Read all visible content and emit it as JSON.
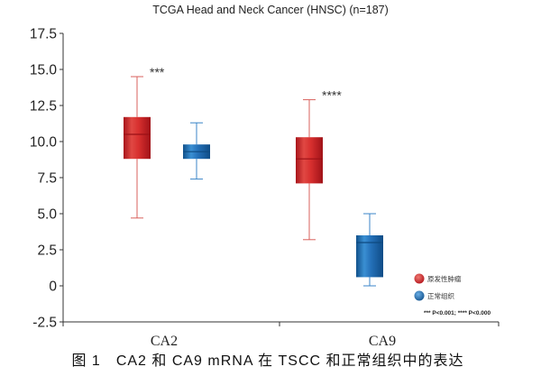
{
  "caption": "图 1　CA2 和 CA9 mRNA 在 TSCC 和正常组织中的表达",
  "chart_data": {
    "type": "box",
    "title": "TCGA Head and Neck Cancer (HNSC) (n=187)",
    "categories": [
      "CA2",
      "CA9"
    ],
    "ylim": [
      -2.5,
      17.5
    ],
    "yticks": [
      17.5,
      15,
      12.5,
      10,
      7.5,
      5,
      2.5,
      0,
      -2.5
    ],
    "ytick_labels": [
      "17.5",
      "15.0",
      "12.5",
      "10.0",
      "7.5",
      "5.0",
      "2.5",
      "0",
      "-2.5"
    ],
    "series": [
      {
        "name": "原发性肿瘤",
        "color": "#d42a2c",
        "boxes": [
          {
            "min": 4.7,
            "q1": 8.8,
            "median": 10.5,
            "q3": 11.7,
            "max": 14.5
          },
          {
            "min": 3.2,
            "q1": 7.1,
            "median": 8.8,
            "q3": 10.3,
            "max": 12.9
          }
        ]
      },
      {
        "name": "正常组织",
        "color": "#1f6db2",
        "boxes": [
          {
            "min": 7.4,
            "q1": 8.8,
            "median": 9.3,
            "q3": 9.8,
            "max": 11.3
          },
          {
            "min": 0.0,
            "q1": 0.6,
            "median": 3.0,
            "q3": 3.5,
            "max": 5.0
          }
        ]
      }
    ],
    "significance": [
      "***",
      "****"
    ],
    "note": "*** P<0.001; **** P<0.000",
    "legend": "bottom-right",
    "grid": false
  }
}
